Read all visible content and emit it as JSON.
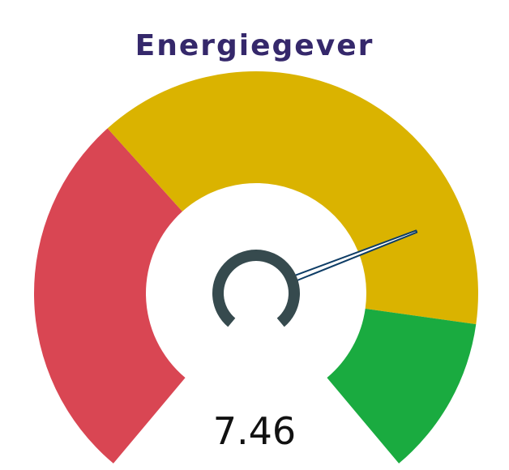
{
  "gauge": {
    "title": "Energiegever",
    "value_label": "7.46"
  },
  "chart_data": {
    "type": "gauge",
    "title": "Energiegever",
    "value": 7.46,
    "range": [
      0,
      10
    ],
    "bands": [
      {
        "from": 0,
        "to": 3.5,
        "color": "#d94653"
      },
      {
        "from": 3.5,
        "to": 8.5,
        "color": "#dab300"
      },
      {
        "from": 8.5,
        "to": 10,
        "color": "#1aab40"
      }
    ]
  },
  "colors": {
    "title": "#35286b",
    "needle": "#0e3d66",
    "hub": "#364a4e"
  }
}
